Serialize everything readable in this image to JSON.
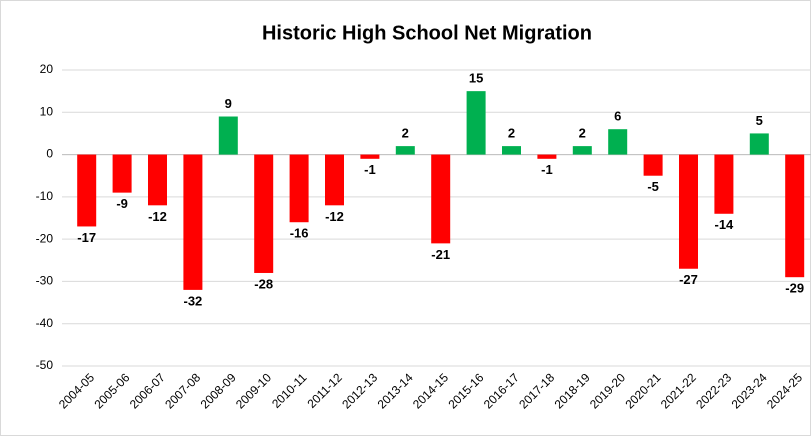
{
  "chart_data": {
    "type": "bar",
    "title": "Historic High School Net Migration",
    "categories": [
      "2004-05",
      "2005-06",
      "2006-07",
      "2007-08",
      "2008-09",
      "2009-10",
      "2010-11",
      "2011-12",
      "2012-13",
      "2013-14",
      "2014-15",
      "2015-16",
      "2016-17",
      "2017-18",
      "2018-19",
      "2019-20",
      "2020-21",
      "2021-22",
      "2022-23",
      "2023-24",
      "2024-25"
    ],
    "values": [
      -17,
      -9,
      -12,
      -32,
      9,
      -28,
      -16,
      -12,
      -1,
      2,
      -21,
      15,
      2,
      -1,
      2,
      6,
      -5,
      -27,
      -14,
      5,
      -29
    ],
    "positive_color": "#00b050",
    "negative_color": "#ff0000",
    "ylim": [
      -50,
      20
    ],
    "yticks": [
      -50,
      -40,
      -30,
      -20,
      -10,
      0,
      10,
      20
    ],
    "grid": true
  }
}
